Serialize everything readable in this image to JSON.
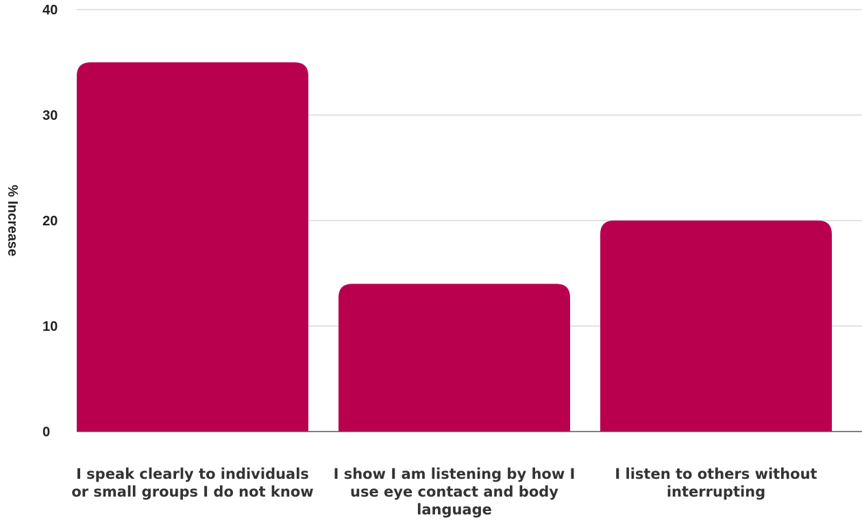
{
  "chart_data": {
    "type": "bar",
    "title": "",
    "xlabel": "",
    "ylabel": "% Increase",
    "categories": [
      "I speak clearly to individuals or small groups I do not know",
      "I show I am listening by how I use eye contact and body language",
      "I listen to others without interrupting"
    ],
    "values": [
      35,
      14,
      20
    ],
    "ylim": [
      0,
      40
    ],
    "yticks": [
      0,
      10,
      20,
      30,
      40
    ],
    "grid": true,
    "bar_color": "#b8004f",
    "gridline_color": "#c6c6c6",
    "axis_color": "#555555"
  }
}
